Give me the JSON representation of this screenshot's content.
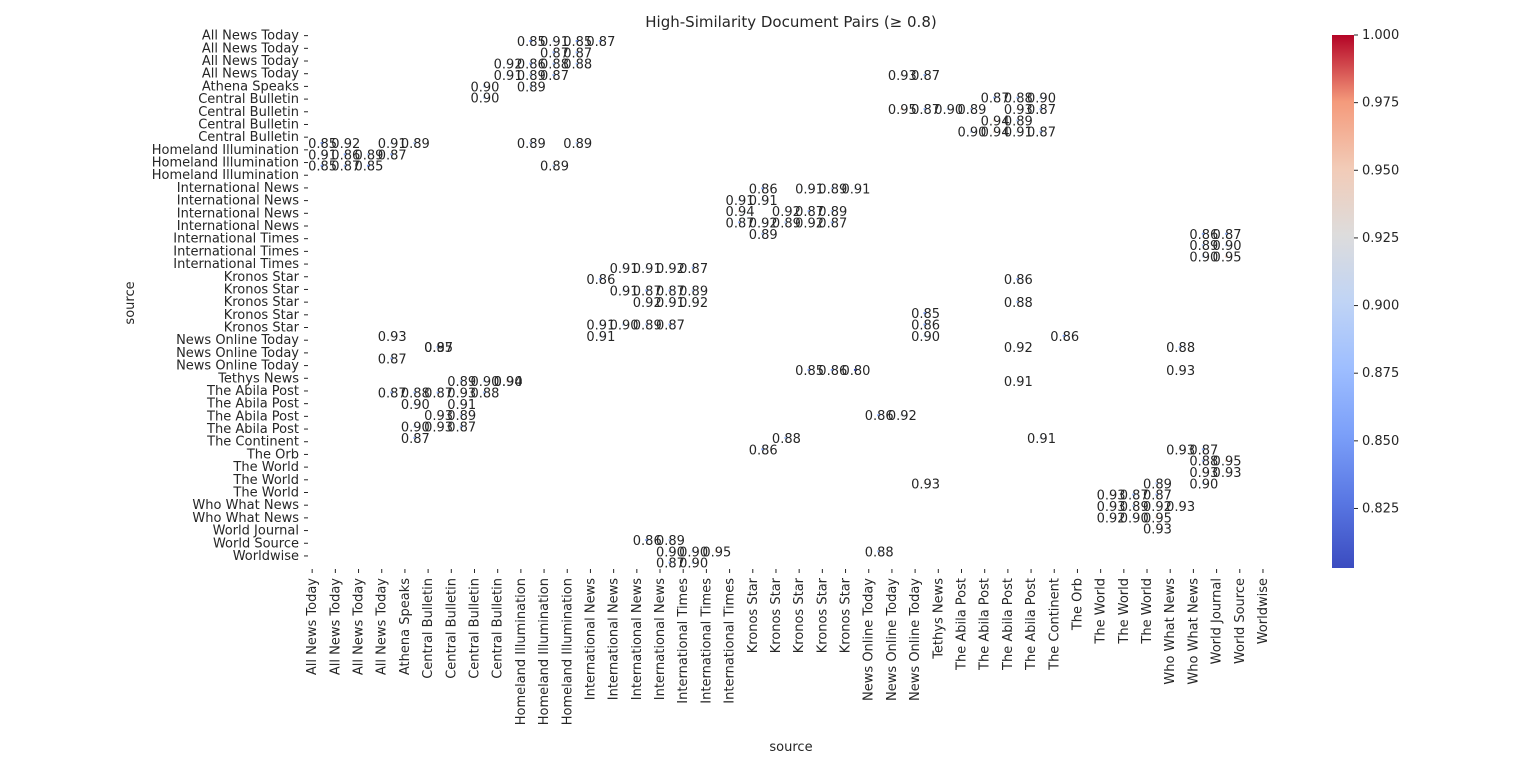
{
  "chart_data": {
    "type": "heatmap",
    "title": "High-Similarity Document Pairs (≥ 0.8)",
    "xlabel": "source",
    "ylabel": "source",
    "sources": [
      "All News Today",
      "All News Today",
      "All News Today",
      "All News Today",
      "Athena Speaks",
      "Central Bulletin",
      "Central Bulletin",
      "Central Bulletin",
      "Central Bulletin",
      "Homeland Illumination",
      "Homeland Illumination",
      "Homeland Illumination",
      "International News",
      "International News",
      "International News",
      "International News",
      "International Times",
      "International Times",
      "International Times",
      "Kronos Star",
      "Kronos Star",
      "Kronos Star",
      "Kronos Star",
      "Kronos Star",
      "News Online Today",
      "News Online Today",
      "News Online Today",
      "Tethys News",
      "The Abila Post",
      "The Abila Post",
      "The Abila Post",
      "The Abila Post",
      "The Continent",
      "The Orb",
      "The World",
      "The World",
      "The World",
      "Who What News",
      "Who What News",
      "World Journal",
      "World Source",
      "Worldwise"
    ],
    "colorbar": {
      "cmap": "coolwarm",
      "vmin": 0.803,
      "vmax": 1.0,
      "ticks": [
        "0.825",
        "0.850",
        "0.875",
        "0.900",
        "0.925",
        "0.950",
        "0.975",
        "1.000"
      ]
    },
    "grid": false,
    "cells": [
      [
        0,
        9,
        0.85
      ],
      [
        0,
        10,
        0.91
      ],
      [
        0,
        11,
        0.85
      ],
      [
        0,
        12,
        0.87
      ],
      [
        1,
        10,
        0.87
      ],
      [
        1,
        11,
        0.87
      ],
      [
        2,
        8,
        0.92
      ],
      [
        2,
        9,
        0.86
      ],
      [
        2,
        10,
        0.88
      ],
      [
        2,
        11,
        0.88
      ],
      [
        3,
        8,
        0.91
      ],
      [
        3,
        9,
        0.89
      ],
      [
        3,
        10,
        0.87
      ],
      [
        4,
        9,
        0.89
      ],
      [
        4,
        7,
        0.9
      ],
      [
        3,
        25,
        0.93
      ],
      [
        3,
        26,
        0.87
      ],
      [
        5,
        7,
        0.9
      ],
      [
        5,
        29,
        0.87
      ],
      [
        5,
        30,
        0.88
      ],
      [
        5,
        31,
        0.9
      ],
      [
        6,
        27,
        0.9
      ],
      [
        6,
        28,
        0.89
      ],
      [
        6,
        30,
        0.93
      ],
      [
        6,
        31,
        0.87
      ],
      [
        6,
        25,
        0.95
      ],
      [
        6,
        26,
        0.87
      ],
      [
        7,
        29,
        0.94
      ],
      [
        7,
        30,
        0.89
      ],
      [
        8,
        28,
        0.9
      ],
      [
        8,
        29,
        0.94
      ],
      [
        8,
        30,
        0.91
      ],
      [
        8,
        31,
        0.87
      ],
      [
        9,
        0,
        0.85
      ],
      [
        9,
        1,
        0.92
      ],
      [
        9,
        3,
        0.91
      ],
      [
        9,
        4,
        0.89
      ],
      [
        9,
        9,
        0.89
      ],
      [
        9,
        11,
        0.89
      ],
      [
        10,
        0,
        0.91
      ],
      [
        10,
        1,
        0.86
      ],
      [
        10,
        2,
        0.89
      ],
      [
        10,
        3,
        0.87
      ],
      [
        11,
        0,
        0.85
      ],
      [
        11,
        1,
        0.87
      ],
      [
        11,
        2,
        0.85
      ],
      [
        11,
        10,
        0.89
      ],
      [
        13,
        19,
        0.86
      ],
      [
        13,
        21,
        0.91
      ],
      [
        13,
        22,
        0.89
      ],
      [
        13,
        23,
        0.91
      ],
      [
        14,
        18,
        0.91
      ],
      [
        14,
        19,
        0.91
      ],
      [
        15,
        18,
        0.94
      ],
      [
        15,
        20,
        0.92
      ],
      [
        15,
        21,
        0.87
      ],
      [
        15,
        22,
        0.89
      ],
      [
        16,
        18,
        0.87
      ],
      [
        16,
        19,
        0.92
      ],
      [
        16,
        20,
        0.89
      ],
      [
        16,
        21,
        0.92
      ],
      [
        16,
        22,
        0.87
      ],
      [
        17,
        19,
        0.89
      ],
      [
        17,
        38,
        0.86
      ],
      [
        17,
        39,
        0.87
      ],
      [
        18,
        38,
        0.89
      ],
      [
        18,
        39,
        0.9
      ],
      [
        19,
        38,
        0.9
      ],
      [
        19,
        39,
        0.95
      ],
      [
        20,
        13,
        0.91
      ],
      [
        20,
        14,
        0.91
      ],
      [
        20,
        15,
        0.92
      ],
      [
        20,
        16,
        0.87
      ],
      [
        21,
        12,
        0.86
      ],
      [
        21,
        30,
        0.86
      ],
      [
        22,
        13,
        0.91
      ],
      [
        22,
        14,
        0.87
      ],
      [
        22,
        15,
        0.87
      ],
      [
        22,
        16,
        0.89
      ],
      [
        23,
        14,
        0.92
      ],
      [
        23,
        15,
        0.91
      ],
      [
        23,
        16,
        0.92
      ],
      [
        23,
        30,
        0.88
      ],
      [
        24,
        26,
        0.85
      ],
      [
        25,
        12,
        0.91
      ],
      [
        25,
        13,
        0.9
      ],
      [
        25,
        14,
        0.89
      ],
      [
        25,
        15,
        0.87
      ],
      [
        25,
        26,
        0.86
      ],
      [
        26,
        12,
        0.91
      ],
      [
        26,
        26,
        0.9
      ],
      [
        26,
        32,
        0.86
      ],
      [
        26,
        3,
        0.93
      ],
      [
        27,
        30,
        0.92
      ],
      [
        27,
        5,
        0.95
      ],
      [
        27,
        5,
        0.87
      ],
      [
        27,
        37,
        0.88
      ],
      [
        28,
        3,
        0.87
      ],
      [
        29,
        37,
        0.93
      ],
      [
        29,
        21,
        0.85
      ],
      [
        29,
        22,
        0.86
      ],
      [
        29,
        23,
        0.8
      ],
      [
        30,
        6,
        0.89
      ],
      [
        30,
        7,
        0.9
      ],
      [
        30,
        8,
        0.9
      ],
      [
        30,
        8,
        0.94
      ],
      [
        30,
        30,
        0.91
      ],
      [
        31,
        3,
        0.87
      ],
      [
        31,
        4,
        0.88
      ],
      [
        31,
        5,
        0.87
      ],
      [
        31,
        6,
        0.93
      ],
      [
        31,
        7,
        0.88
      ],
      [
        32,
        4,
        0.9
      ],
      [
        32,
        6,
        0.91
      ],
      [
        33,
        6,
        0.89
      ],
      [
        33,
        5,
        0.93
      ],
      [
        33,
        25,
        0.92
      ],
      [
        33,
        24,
        0.86
      ],
      [
        34,
        4,
        0.9
      ],
      [
        34,
        5,
        0.93
      ],
      [
        34,
        6,
        0.87
      ],
      [
        35,
        20,
        0.88
      ],
      [
        35,
        31,
        0.91
      ],
      [
        35,
        4,
        0.87
      ],
      [
        36,
        19,
        0.86
      ],
      [
        36,
        37,
        0.93
      ],
      [
        36,
        38,
        0.87
      ],
      [
        37,
        38,
        0.88
      ],
      [
        37,
        39,
        0.95
      ],
      [
        38,
        39,
        0.93
      ],
      [
        38,
        38,
        0.93
      ],
      [
        39,
        38,
        0.9
      ],
      [
        39,
        36,
        0.89
      ],
      [
        40,
        36,
        0.87
      ],
      [
        40,
        34,
        0.93
      ],
      [
        40,
        35,
        0.87
      ],
      [
        41,
        34,
        0.93
      ],
      [
        41,
        35,
        0.89
      ],
      [
        41,
        36,
        0.92
      ],
      [
        41,
        37,
        0.93
      ],
      [
        42,
        35,
        0.9
      ],
      [
        42,
        36,
        0.95
      ],
      [
        42,
        34,
        0.92
      ],
      [
        43,
        36,
        0.93
      ],
      [
        44,
        14,
        0.86
      ],
      [
        44,
        15,
        0.89
      ],
      [
        45,
        15,
        0.9
      ],
      [
        45,
        16,
        0.9
      ],
      [
        45,
        17,
        0.95
      ],
      [
        46,
        15,
        0.87
      ],
      [
        46,
        16,
        0.9
      ],
      [
        45,
        24,
        0.88
      ],
      [
        39,
        26,
        0.93
      ]
    ]
  }
}
